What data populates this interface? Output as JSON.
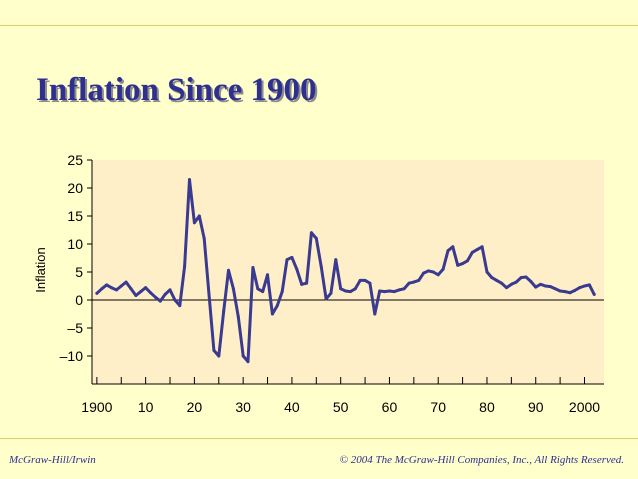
{
  "slide": {
    "title": "Inflation Since 1900",
    "footer_left": "McGraw-Hill/Irwin",
    "footer_right": "© 2004 The McGraw-Hill Companies, Inc., All Rights Reserved."
  },
  "colors": {
    "background": "#FFFFCC",
    "plot_area": "#FFEFC9",
    "line": "#3A3A91",
    "title": "#2E2F8F",
    "rule": "#E8C86A"
  },
  "chart_data": {
    "type": "line",
    "title": "",
    "xlabel": "",
    "ylabel": "Inflation",
    "xlim": [
      1899,
      2004
    ],
    "ylim": [
      -15,
      25
    ],
    "x_ticks": [
      1900,
      1910,
      1920,
      1930,
      1940,
      1950,
      1960,
      1970,
      1980,
      1990,
      2000
    ],
    "x_tick_labels": [
      "1900",
      "10",
      "20",
      "30",
      "40",
      "50",
      "60",
      "70",
      "80",
      "90",
      "2000"
    ],
    "y_ticks": [
      25,
      20,
      15,
      10,
      5,
      0,
      -5,
      -10
    ],
    "y_tick_labels": [
      "25",
      "20",
      "15",
      "10",
      "5",
      "0",
      "–5",
      "–10"
    ],
    "grid": false,
    "zero_line": true,
    "series": [
      {
        "name": "Inflation",
        "x": [
          1900,
          1901,
          1902,
          1903,
          1904,
          1905,
          1906,
          1907,
          1908,
          1909,
          1910,
          1911,
          1912,
          1913,
          1914,
          1915,
          1916,
          1917,
          1918,
          1919,
          1920,
          1921,
          1922,
          1923,
          1924,
          1925,
          1926,
          1927,
          1928,
          1929,
          1930,
          1931,
          1932,
          1933,
          1934,
          1935,
          1936,
          1937,
          1938,
          1939,
          1940,
          1941,
          1942,
          1943,
          1944,
          1945,
          1946,
          1947,
          1948,
          1949,
          1950,
          1951,
          1952,
          1953,
          1954,
          1955,
          1956,
          1957,
          1958,
          1959,
          1960,
          1961,
          1962,
          1963,
          1964,
          1965,
          1966,
          1967,
          1968,
          1969,
          1970,
          1971,
          1972,
          1973,
          1974,
          1975,
          1976,
          1977,
          1978,
          1979,
          1980,
          1981,
          1982,
          1983,
          1984,
          1985,
          1986,
          1987,
          1988,
          1989,
          1990,
          1991,
          1992,
          1993,
          1994,
          1995,
          1996,
          1997,
          1998,
          1999,
          2000,
          2001,
          2002
        ],
        "values": [
          1.2,
          2.0,
          2.7,
          2.2,
          1.8,
          2.5,
          3.2,
          2.0,
          0.8,
          1.5,
          2.2,
          1.3,
          0.5,
          -0.2,
          1.0,
          1.8,
          0.0,
          -1.0,
          6.0,
          21.5,
          13.8,
          15.0,
          11.0,
          1.0,
          -9.0,
          -10.0,
          -2.0,
          5.3,
          2.0,
          -3.0,
          -10.0,
          -11.0,
          5.8,
          2.0,
          1.5,
          4.5,
          -2.5,
          -1.0,
          1.5,
          7.2,
          7.6,
          5.5,
          2.8,
          3.0,
          12.0,
          11.0,
          6.0,
          0.2,
          1.2,
          7.2,
          2.0,
          1.6,
          1.5,
          2.0,
          3.5,
          3.5,
          3.0,
          -2.5,
          1.6,
          1.5,
          1.6,
          1.5,
          1.8,
          2.0,
          3.0,
          3.2,
          3.5,
          4.8,
          5.2,
          5.0,
          4.5,
          5.5,
          8.8,
          9.5,
          6.2,
          6.5,
          7.0,
          8.5,
          9.0,
          9.5,
          5.0,
          4.0,
          3.5,
          3.0,
          2.2,
          2.8,
          3.2,
          4.0,
          4.1,
          3.3,
          2.3,
          2.8,
          2.5,
          2.4,
          2.0,
          1.6,
          1.5,
          1.3,
          1.7,
          2.2,
          2.5,
          2.7,
          1.0
        ]
      }
    ]
  }
}
